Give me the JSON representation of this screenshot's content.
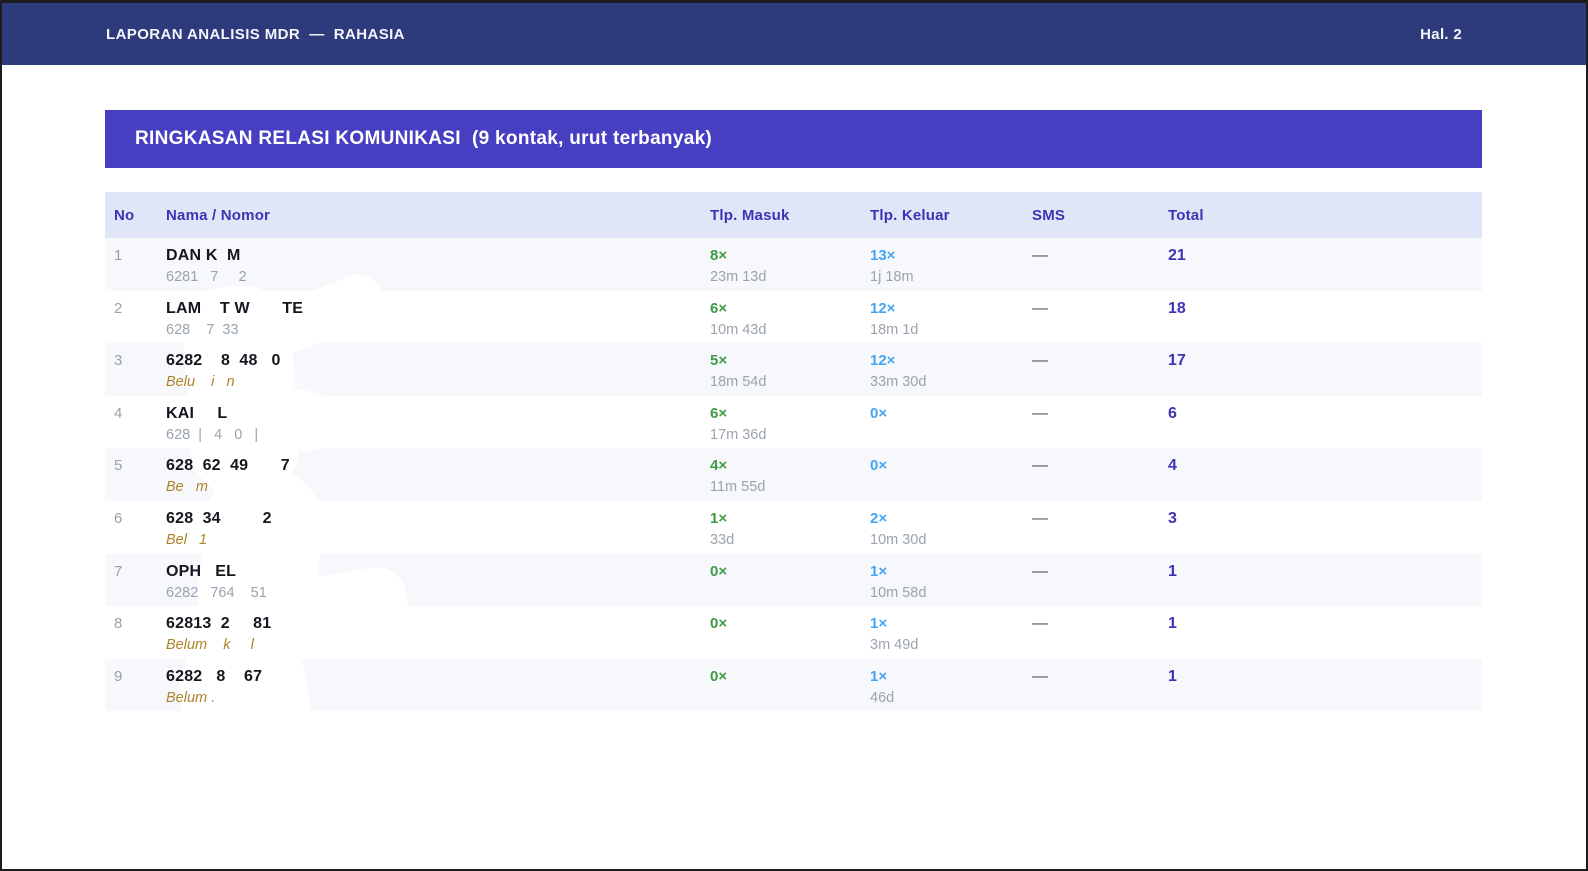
{
  "header": {
    "title": "LAPORAN ANALISIS MDR  —  RAHASIA",
    "page_label": "Hal. 2"
  },
  "banner": {
    "title": "RINGKASAN RELASI KOMUNIKASI  (9 kontak, urut terbanyak)"
  },
  "table": {
    "columns": [
      "No",
      "Nama / Nomor",
      "Tlp. Masuk",
      "Tlp. Keluar",
      "SMS",
      "Total"
    ],
    "rows": [
      {
        "no": "1",
        "name": "DAN K  M",
        "sub": "6281   7     2",
        "sub_type": "number",
        "in_count": "8×",
        "in_dur": "23m 13d",
        "out_count": "13×",
        "out_dur": "1j 18m",
        "sms": "—",
        "total": "21"
      },
      {
        "no": "2",
        "name": "LAM    T W       TE",
        "sub": "628    7  33",
        "sub_type": "number",
        "in_count": "6×",
        "in_dur": "10m 43d",
        "out_count": "12×",
        "out_dur": "18m 1d",
        "sms": "—",
        "total": "18"
      },
      {
        "no": "3",
        "name": "6282    8  48   0",
        "sub": "Belu    i   n",
        "sub_type": "unknown",
        "in_count": "5×",
        "in_dur": "18m 54d",
        "out_count": "12×",
        "out_dur": "33m 30d",
        "sms": "—",
        "total": "17"
      },
      {
        "no": "4",
        "name": "KAI     L",
        "sub": "628  |   4   0   |",
        "sub_type": "number",
        "in_count": "6×",
        "in_dur": "17m 36d",
        "out_count": "0×",
        "out_dur": "",
        "sms": "—",
        "total": "6"
      },
      {
        "no": "5",
        "name": "628  62  49       7",
        "sub": "Be   m",
        "sub_type": "unknown",
        "in_count": "4×",
        "in_dur": "11m 55d",
        "out_count": "0×",
        "out_dur": "",
        "sms": "—",
        "total": "4"
      },
      {
        "no": "6",
        "name": "628  34         2",
        "sub": "Bel   1",
        "sub_type": "unknown",
        "in_count": "1×",
        "in_dur": "33d",
        "out_count": "2×",
        "out_dur": "10m 30d",
        "sms": "—",
        "total": "3"
      },
      {
        "no": "7",
        "name": "OPH   EL",
        "sub": "6282   764    51",
        "sub_type": "number",
        "in_count": "0×",
        "in_dur": "",
        "out_count": "1×",
        "out_dur": "10m 58d",
        "sms": "—",
        "total": "1"
      },
      {
        "no": "8",
        "name": "62813  2     81",
        "sub": "Belum    k     l",
        "sub_type": "unknown",
        "in_count": "0×",
        "in_dur": "",
        "out_count": "1×",
        "out_dur": "3m 49d",
        "sms": "—",
        "total": "1"
      },
      {
        "no": "9",
        "name": "6282   8    67",
        "sub": "Belum .",
        "sub_type": "unknown",
        "in_count": "0×",
        "in_dur": "",
        "out_count": "1×",
        "out_dur": "46d",
        "sms": "—",
        "total": "1"
      }
    ]
  },
  "colors": {
    "topbar_navy": "#2d3a7b",
    "banner_purple": "#473fc2",
    "header_row_lavender": "#e1e5f8",
    "zebra_light": "#f7f8fc",
    "indigo_text": "#3f33b5",
    "incoming_green": "#3e9b43",
    "outgoing_blue": "#45a4ef",
    "unknown_amber": "#ad842a",
    "muted_gray": "#9ba3ae"
  }
}
